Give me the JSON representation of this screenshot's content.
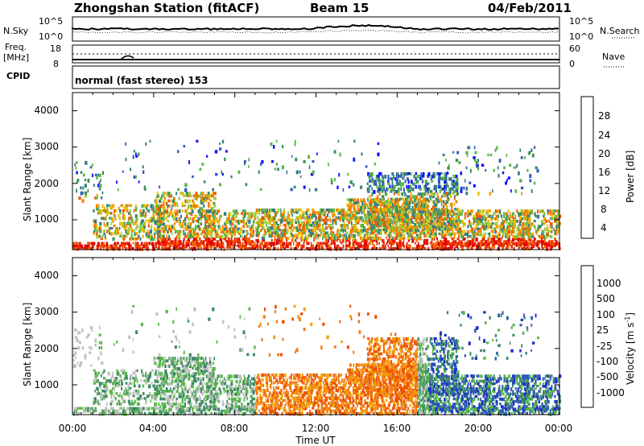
{
  "header": {
    "title": "Zhongshan Station (fitACF)",
    "beam": "Beam 15",
    "date": "04/Feb/2011"
  },
  "strip_sky": {
    "left_label": "N.Sky",
    "right_label": "N.Search",
    "ticks_left": [
      "10^5",
      "10^0"
    ],
    "ticks_right": [
      "10^5",
      "10^0"
    ]
  },
  "strip_freq": {
    "left_label_1": "Freq.",
    "left_label_2": "[MHz]",
    "right_label": "Nave",
    "ticks_left": [
      "18",
      "8"
    ],
    "ticks_right": [
      "60",
      "0"
    ]
  },
  "strip_cpid": {
    "left_label": "CPID",
    "text": "normal (fast stereo) 153"
  },
  "chart_data": [
    {
      "type": "heatmap",
      "quantity": "power",
      "ylabel": "Slant Range [km]",
      "xlabel": "Time UT",
      "xlim": [
        "00:00",
        "24:00"
      ],
      "ylim": [
        180,
        4500
      ],
      "x_ticks": [
        "00:00",
        "04:00",
        "08:00",
        "12:00",
        "16:00",
        "20:00",
        "00:00"
      ],
      "y_ticks": [
        1000,
        2000,
        3000,
        4000
      ],
      "colorbar": {
        "label": "Power [dB]",
        "range": [
          0,
          30
        ],
        "ticks": [
          4,
          8,
          12,
          16,
          20,
          24,
          28
        ],
        "colors": [
          "#1010ff",
          "#2f56c8",
          "#3a7a8a",
          "#3c8f5a",
          "#58b848",
          "#9ccb3c",
          "#e8c000",
          "#f2a200",
          "#f08200",
          "#f05a00",
          "#ea2800",
          "#e00000"
        ]
      }
    },
    {
      "type": "heatmap",
      "quantity": "velocity",
      "ylabel": "Slant Range [km]",
      "xlabel": "Time UT",
      "xlim": [
        "00:00",
        "24:00"
      ],
      "ylim": [
        180,
        4500
      ],
      "x_ticks": [
        "00:00",
        "04:00",
        "08:00",
        "12:00",
        "16:00",
        "20:00",
        "00:00"
      ],
      "y_ticks": [
        1000,
        2000,
        3000,
        4000
      ],
      "colorbar": {
        "label": "Velocity [m s^-1]",
        "ticks": [
          "1000",
          "500",
          "100",
          "25",
          "-25",
          "-100",
          "-500",
          "-1000"
        ],
        "colors": [
          "#2030c8",
          "#2c60b0",
          "#3c8868",
          "#58b848",
          "#c0c0c0",
          "#f0a000",
          "#f08020",
          "#f05000",
          "#e00000"
        ]
      }
    }
  ],
  "axes": {
    "xlabel": "Time UT",
    "x_ticks": [
      "00:00",
      "04:00",
      "08:00",
      "12:00",
      "16:00",
      "20:00",
      "00:00"
    ],
    "ylabel_top": "Slant Range [km]",
    "ylabel_bottom": "Slant Range [km]",
    "y_ticks": [
      "4000",
      "3000",
      "2000",
      "1000"
    ],
    "power_label": "Power [dB]",
    "power_ticks": [
      "28",
      "24",
      "20",
      "16",
      "12",
      "8",
      "4"
    ],
    "velocity_label": "Velocity [m s",
    "velocity_unit_tail": "]",
    "velocity_sup": "-1",
    "velocity_ticks": [
      "1000",
      "500",
      "100",
      "25",
      "-25",
      "-100",
      "-500",
      "-1000"
    ]
  }
}
